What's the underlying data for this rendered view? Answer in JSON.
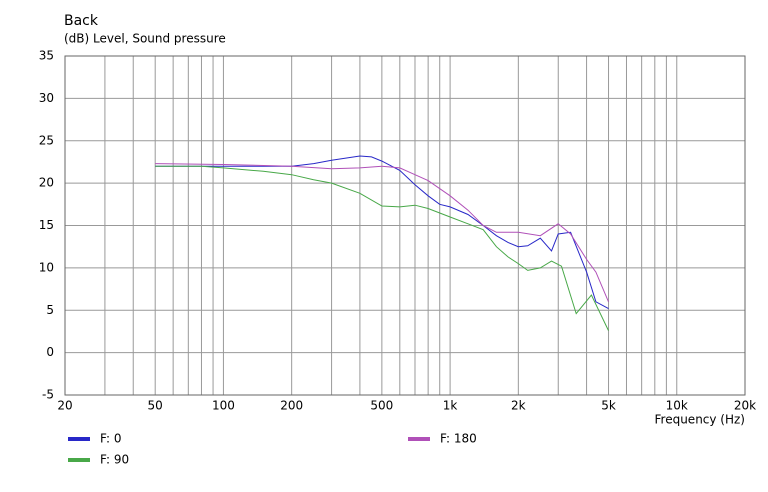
{
  "chart_data": {
    "type": "line",
    "title": "Back",
    "ylabel": "(dB)  Level, Sound pressure",
    "xlabel": "Frequency (Hz)",
    "xscale": "log",
    "grid": true,
    "xlim": [
      20,
      20000
    ],
    "ylim": [
      -5,
      35
    ],
    "yticks": [
      -5,
      0,
      5,
      10,
      15,
      20,
      25,
      30,
      35
    ],
    "xticks": [
      20,
      50,
      100,
      200,
      500,
      {
        "value": 1000,
        "label": "1k"
      },
      {
        "value": 2000,
        "label": "2k"
      },
      {
        "value": 5000,
        "label": "5k"
      },
      {
        "value": 10000,
        "label": "10k"
      },
      {
        "value": 20000,
        "label": "20k"
      }
    ],
    "xgrid": [
      20,
      30,
      40,
      50,
      60,
      70,
      80,
      90,
      100,
      200,
      300,
      400,
      500,
      600,
      700,
      800,
      900,
      1000,
      2000,
      3000,
      4000,
      5000,
      6000,
      7000,
      8000,
      9000,
      10000,
      20000
    ],
    "series": [
      {
        "name": "F: 0",
        "color": "#2828c8",
        "x": [
          50,
          100,
          200,
          250,
          300,
          400,
          450,
          500,
          600,
          700,
          800,
          900,
          1000,
          1200,
          1400,
          1600,
          1800,
          2000,
          2200,
          2500,
          2800,
          3000,
          3400,
          4000,
          4400,
          5000
        ],
        "values": [
          22.0,
          22.0,
          22.0,
          22.3,
          22.7,
          23.2,
          23.1,
          22.6,
          21.5,
          19.8,
          18.5,
          17.5,
          17.2,
          16.3,
          15.0,
          13.8,
          13.0,
          12.5,
          12.6,
          13.5,
          12.0,
          14.0,
          14.2,
          9.5,
          6.0,
          5.2
        ]
      },
      {
        "name": "F: 90",
        "color": "#48a848",
        "x": [
          50,
          80,
          100,
          150,
          200,
          250,
          300,
          400,
          500,
          600,
          700,
          800,
          1000,
          1200,
          1400,
          1600,
          1800,
          2000,
          2200,
          2500,
          2800,
          3100,
          3600,
          4200,
          5000
        ],
        "values": [
          22.0,
          22.0,
          21.8,
          21.4,
          21.0,
          20.4,
          20.0,
          18.8,
          17.3,
          17.2,
          17.4,
          17.0,
          16.0,
          15.2,
          14.5,
          12.5,
          11.3,
          10.5,
          9.7,
          10.0,
          10.8,
          10.2,
          4.6,
          6.8,
          2.6
        ]
      },
      {
        "name": "F: 180",
        "color": "#b050b8",
        "x": [
          50,
          100,
          200,
          300,
          400,
          500,
          600,
          700,
          800,
          1000,
          1200,
          1400,
          1600,
          2000,
          2500,
          3000,
          3400,
          4000,
          4400,
          5000
        ],
        "values": [
          22.3,
          22.2,
          22.0,
          21.7,
          21.8,
          22.0,
          21.8,
          21.0,
          20.3,
          18.5,
          16.8,
          15.0,
          14.2,
          14.2,
          13.8,
          15.2,
          14.0,
          11.0,
          9.5,
          6.0
        ]
      }
    ]
  }
}
